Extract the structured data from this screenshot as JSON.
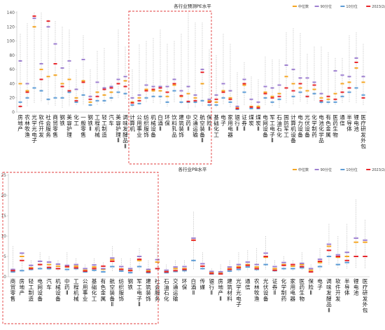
{
  "charts": [
    {
      "title": "各行业预测PE水平",
      "legend": [
        "中位数",
        "90分位",
        "10分位",
        "2023/2/24"
      ],
      "colors": {
        "median": "#f5a623",
        "p90": "#9d7fd0",
        "p10": "#5b9bd5",
        "current": "#e8262b",
        "range": "#aaaaaa",
        "box": "#e23b3b"
      },
      "chart_data": {
        "type": "box",
        "ylim": [
          0,
          140
        ],
        "yticks": [
          0,
          20,
          40,
          60,
          80,
          100,
          120,
          140
        ],
        "grid": false,
        "legend_position": "top-right",
        "categories": [
          "房地产",
          "农林牧渔",
          "光学光电子",
          "软件开发",
          "社会服务",
          "商贸零售",
          "钢铁",
          "美容护理",
          "化工",
          "一般零售",
          "钢铁Ⅱ",
          "工程机械",
          "轻工制造",
          "汽车",
          "美容护理Ⅱ",
          "调味发酵品Ⅱ",
          "计算机",
          "公用事业",
          "纺织服饰",
          "机械设备",
          "白酒Ⅱ",
          "环保",
          "饮料乳品",
          "建筑装饰",
          "中药Ⅱ",
          "交通运输",
          "航空装备Ⅱ",
          "保险Ⅱ",
          "基础化工",
          "电子",
          "家用电器",
          "银行Ⅱ",
          "证券Ⅱ",
          "煤炭",
          "煤炭Ⅱ",
          "电网设备",
          "军工电子Ⅱ",
          "石油石化",
          "国防军工",
          "计算机设备",
          "电力设备",
          "光伏设备",
          "化学制药",
          "电池化学品",
          "有色金属",
          "医药生物",
          "通信",
          "半导体",
          "锂电池",
          "医疗研发外包"
        ],
        "min": [
          6,
          8,
          12,
          14,
          10,
          9,
          6,
          8,
          9,
          10,
          8,
          10,
          12,
          14,
          20,
          18,
          6,
          10,
          14,
          12,
          12,
          8,
          14,
          10,
          4,
          6,
          8,
          6,
          6,
          10,
          6,
          2,
          10,
          4,
          4,
          10,
          8,
          6,
          12,
          10,
          14,
          12,
          16,
          10,
          10,
          10,
          12,
          14,
          12,
          10
        ],
        "max": [
          110,
          125,
          140,
          140,
          130,
          128,
          120,
          116,
          60,
          108,
          60,
          86,
          90,
          40,
          116,
          92,
          60,
          95,
          100,
          104,
          116,
          96,
          100,
          110,
          140,
          126,
          126,
          88,
          80,
          110,
          96,
          56,
          70,
          50,
          46,
          78,
          74,
          74,
          112,
          118,
          111,
          82,
          92,
          92,
          84,
          76,
          76,
          108,
          112,
          96
        ],
        "p90": [
          72,
          40,
          132,
          68,
          120,
          96,
          62,
          72,
          32,
          74,
          22,
          42,
          34,
          36,
          46,
          50,
          20,
          24,
          38,
          36,
          36,
          36,
          46,
          30,
          36,
          24,
          60,
          18,
          24,
          40,
          30,
          8,
          46,
          18,
          14,
          36,
          34,
          38,
          66,
          60,
          48,
          48,
          42,
          26,
          22,
          58,
          52,
          50,
          76,
          50
        ],
        "median": [
          40,
          30,
          120,
          60,
          50,
          52,
          40,
          46,
          20,
          44,
          14,
          28,
          24,
          28,
          40,
          44,
          14,
          20,
          32,
          30,
          30,
          22,
          38,
          22,
          26,
          20,
          40,
          16,
          14,
          30,
          20,
          6,
          38,
          8,
          8,
          28,
          22,
          26,
          50,
          40,
          34,
          30,
          32,
          20,
          18,
          26,
          40,
          42,
          62,
          42
        ],
        "p10": [
          14,
          20,
          34,
          30,
          18,
          20,
          20,
          28,
          14,
          24,
          10,
          16,
          16,
          20,
          28,
          26,
          10,
          12,
          20,
          22,
          22,
          14,
          30,
          14,
          14,
          14,
          16,
          10,
          10,
          20,
          14,
          4,
          28,
          5,
          5,
          20,
          14,
          18,
          34,
          22,
          28,
          22,
          26,
          14,
          14,
          14,
          22,
          28,
          34,
          24
        ],
        "current": [
          8,
          28,
          135,
          46,
          128,
          68,
          36,
          30,
          16,
          42,
          18,
          22,
          32,
          34,
          40,
          36,
          13,
          16,
          30,
          32,
          34,
          28,
          40,
          23,
          15,
          16,
          56,
          14,
          18,
          28,
          18,
          5,
          40,
          7,
          6,
          26,
          20,
          22,
          34,
          30,
          40,
          22,
          38,
          16,
          22,
          18,
          28,
          34,
          70,
          20
        ]
      }
    },
    {
      "title": "各行业PB水平",
      "legend": [
        "中位数",
        "90分位",
        "10分位",
        "2023/2/24"
      ],
      "colors": {
        "median": "#f5a623",
        "p90": "#9d7fd0",
        "p10": "#5b9bd5",
        "current": "#e8262b",
        "range": "#aaaaaa",
        "box": "#e23b3b"
      },
      "chart_data": {
        "type": "box",
        "ylim": [
          0,
          25
        ],
        "yticks": [
          0,
          5,
          10,
          15,
          20,
          25
        ],
        "grid": false,
        "legend_position": "top-right",
        "categories": [
          "商贸零售",
          "房地产",
          "轻工制造",
          "电网设备",
          "汽车",
          "机械设备",
          "中药Ⅱ",
          "工程机械",
          "公用事业",
          "基础化工",
          "有色金属",
          "航空装备Ⅱ",
          "纺织服饰",
          "钢铁",
          "军工电子Ⅱ",
          "建筑装饰",
          "社会服务",
          "石油石化",
          "交通运输",
          "环保",
          "白酒Ⅱ",
          "传媒",
          "银行Ⅱ",
          "房地产Ⅱ",
          "建筑材料",
          "光学光电子",
          "通信",
          "农林牧渔",
          "光伏设备",
          "证券Ⅱ",
          "化学制药",
          "家用电器",
          "医药生物",
          "保险Ⅱ",
          "电子",
          "调味发酵品Ⅱ",
          "软件开发",
          "半导体",
          "锂电池",
          "医疗研发外包"
        ],
        "min": [
          1.0,
          1.0,
          1.4,
          1.5,
          1.4,
          1.4,
          1.3,
          1.5,
          1.0,
          1.2,
          1.0,
          1.3,
          1.0,
          0.8,
          1.5,
          0.8,
          1.2,
          0.8,
          0.9,
          1.0,
          1.8,
          1.5,
          0.6,
          0.5,
          0.8,
          1.2,
          1.5,
          1.4,
          1.8,
          1.2,
          1.5,
          1.5,
          1.5,
          1.0,
          1.5,
          3.0,
          2.0,
          2.0,
          2.0,
          2.0
        ],
        "max": [
          7.5,
          6.0,
          4.0,
          6.0,
          5.0,
          4.0,
          6.0,
          4.5,
          3.0,
          4.5,
          3.5,
          7.5,
          4.5,
          4.5,
          7.0,
          4.0,
          8.0,
          3.0,
          4.0,
          4.0,
          16.0,
          6.0,
          2.0,
          3.0,
          4.0,
          6.0,
          6.5,
          7.0,
          10.0,
          4.0,
          5.0,
          4.0,
          6.0,
          3.0,
          7.0,
          13.0,
          10.0,
          13.0,
          19.0,
          14.0
        ],
        "p90": [
          1.8,
          5.8,
          2.8,
          3.8,
          3.6,
          3.1,
          2.8,
          3.0,
          2.0,
          2.9,
          2.0,
          4.6,
          2.5,
          2.0,
          5.0,
          1.8,
          4.2,
          1.6,
          2.4,
          2.5,
          9.5,
          3.2,
          1.3,
          1.2,
          2.4,
          3.0,
          3.6,
          3.0,
          5.8,
          2.5,
          3.5,
          3.0,
          3.3,
          2.0,
          4.3,
          8.0,
          5.4,
          6.0,
          9.5,
          9.0
        ],
        "median": [
          1.5,
          5.0,
          2.2,
          3.0,
          3.0,
          2.6,
          2.4,
          2.6,
          1.6,
          2.4,
          1.8,
          4.2,
          1.9,
          1.6,
          4.0,
          1.5,
          3.6,
          1.3,
          2.0,
          2.0,
          9.0,
          2.6,
          1.0,
          1.0,
          2.0,
          2.5,
          3.0,
          2.4,
          4.8,
          2.0,
          3.0,
          2.6,
          3.0,
          1.6,
          3.5,
          7.5,
          4.8,
          5.0,
          8.5,
          8.5
        ],
        "p10": [
          1.2,
          1.5,
          1.8,
          2.0,
          2.0,
          2.0,
          1.8,
          2.0,
          1.2,
          1.6,
          1.2,
          2.5,
          1.4,
          1.0,
          2.5,
          1.0,
          2.0,
          1.0,
          1.3,
          1.5,
          4.0,
          2.0,
          0.7,
          0.7,
          1.4,
          1.8,
          2.4,
          1.8,
          3.0,
          1.5,
          2.0,
          2.0,
          2.2,
          1.2,
          2.5,
          5.0,
          3.0,
          3.5,
          5.0,
          5.0
        ],
        "current": [
          1.5,
          4.0,
          2.0,
          3.0,
          2.3,
          2.0,
          2.5,
          2.2,
          1.4,
          2.0,
          2.6,
          3.8,
          1.8,
          1.5,
          4.3,
          1.2,
          2.0,
          1.2,
          1.5,
          1.8,
          9.0,
          2.6,
          0.8,
          0.7,
          1.8,
          2.2,
          2.8,
          2.0,
          5.0,
          1.6,
          2.8,
          3.0,
          2.5,
          1.2,
          3.8,
          6.5,
          5.0,
          4.0,
          5.0,
          5.0
        ]
      }
    }
  ]
}
